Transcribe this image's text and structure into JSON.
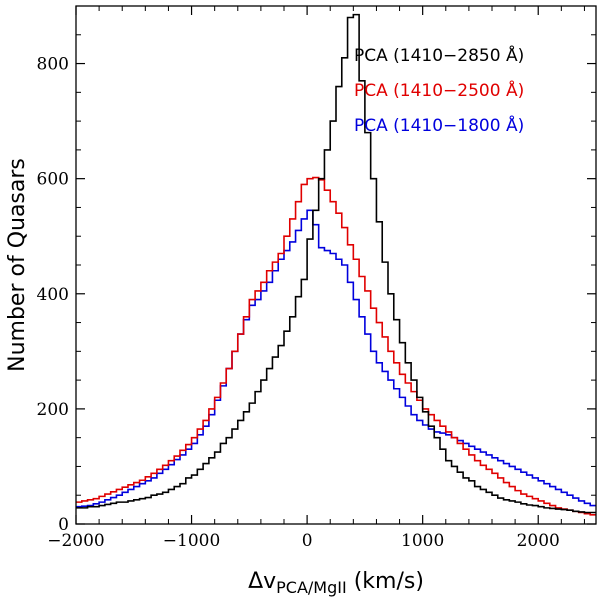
{
  "chart_data": {
    "type": "histogram",
    "xlabel_prefix": "Δv",
    "xlabel_subscript": "PCA/MgII",
    "xlabel_suffix": " (km/s)",
    "ylabel": "Number of Quasars",
    "xlim": [
      -2000,
      2500
    ],
    "ylim": [
      0,
      900
    ],
    "xticks": [
      -2000,
      -1000,
      0,
      1000,
      2000
    ],
    "yticks": [
      0,
      200,
      400,
      600,
      800
    ],
    "x_tick_labels": [
      "−2000",
      "−1000",
      "0",
      "1000",
      "2000"
    ],
    "y_tick_labels": [
      "0",
      "200",
      "400",
      "600",
      "800"
    ],
    "bin_start": -2000,
    "bin_width": 50,
    "legend_position": "top-right",
    "series": [
      {
        "name": "PCA (1410−2850 Å)",
        "color": "#000000",
        "values": [
          28,
          28,
          30,
          30,
          32,
          34,
          36,
          38,
          38,
          40,
          42,
          44,
          46,
          50,
          52,
          55,
          60,
          65,
          70,
          80,
          85,
          95,
          105,
          115,
          125,
          140,
          150,
          165,
          180,
          195,
          210,
          230,
          250,
          270,
          290,
          310,
          335,
          360,
          395,
          425,
          495,
          545,
          600,
          650,
          700,
          760,
          810,
          880,
          885,
          770,
          680,
          600,
          525,
          455,
          400,
          355,
          315,
          280,
          250,
          220,
          195,
          170,
          150,
          130,
          110,
          100,
          90,
          80,
          75,
          65,
          60,
          55,
          50,
          45,
          42,
          40,
          38,
          35,
          33,
          32,
          30,
          28,
          27,
          26,
          25,
          24,
          22,
          21,
          20,
          20
        ]
      },
      {
        "name": "PCA (1410−2500 Å)",
        "color": "#e00000",
        "values": [
          38,
          40,
          42,
          44,
          48,
          52,
          56,
          60,
          64,
          68,
          72,
          76,
          82,
          88,
          95,
          102,
          110,
          118,
          128,
          138,
          150,
          165,
          180,
          200,
          220,
          245,
          270,
          300,
          330,
          360,
          390,
          405,
          420,
          440,
          455,
          470,
          500,
          530,
          560,
          590,
          600,
          602,
          598,
          580,
          560,
          540,
          515,
          485,
          460,
          430,
          405,
          375,
          350,
          325,
          300,
          280,
          260,
          245,
          230,
          215,
          200,
          190,
          180,
          170,
          160,
          150,
          140,
          130,
          120,
          110,
          102,
          95,
          88,
          80,
          72,
          65,
          58,
          52,
          48,
          44,
          40,
          36,
          32,
          28,
          26,
          24,
          22,
          20,
          18,
          16
        ]
      },
      {
        "name": "PCA (1410−1800 Å)",
        "color": "#0000dd",
        "values": [
          30,
          31,
          32,
          35,
          38,
          42,
          46,
          50,
          55,
          60,
          65,
          70,
          75,
          80,
          88,
          95,
          103,
          112,
          120,
          130,
          140,
          155,
          170,
          190,
          215,
          240,
          270,
          300,
          330,
          355,
          380,
          390,
          405,
          420,
          440,
          460,
          475,
          490,
          510,
          530,
          545,
          520,
          480,
          475,
          470,
          460,
          450,
          420,
          390,
          360,
          330,
          300,
          280,
          265,
          250,
          235,
          220,
          205,
          190,
          180,
          172,
          165,
          160,
          158,
          155,
          150,
          145,
          140,
          135,
          130,
          125,
          120,
          115,
          110,
          105,
          100,
          95,
          90,
          85,
          80,
          75,
          70,
          65,
          60,
          55,
          50,
          45,
          40,
          36,
          32
        ]
      }
    ]
  }
}
